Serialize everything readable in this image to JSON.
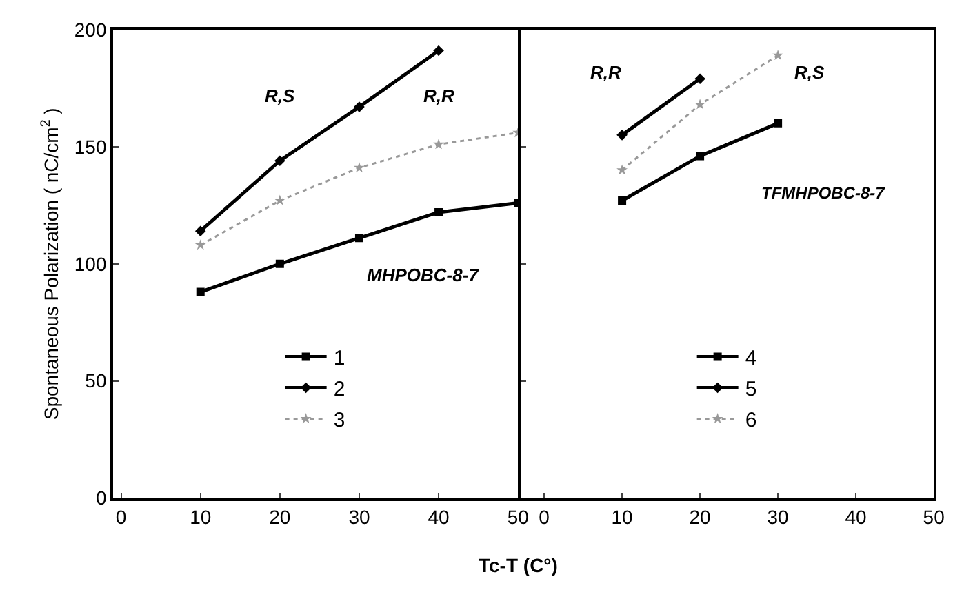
{
  "chart_data": [
    {
      "type": "line",
      "xlabel": "Tc-T (C°)",
      "ylabel": "Spontaneous Polarization ( nC/cm$^{2}$ )",
      "xlim": [
        -1,
        50
      ],
      "xticks": [
        0,
        10,
        20,
        30,
        40,
        50
      ],
      "ylim": [
        0,
        200
      ],
      "yticks": [
        0,
        50,
        100,
        150,
        200
      ],
      "legend": "bottom",
      "annotations": [
        "R,S",
        "R,R",
        "MHPOBC-8-7"
      ],
      "series": [
        {
          "name": "1",
          "color": "#000000",
          "line_style": "solid",
          "marker": "square",
          "x": [
            10,
            20,
            30,
            40,
            50
          ],
          "values": [
            88,
            100,
            111,
            122,
            126
          ]
        },
        {
          "name": "2",
          "color": "#000000",
          "line_style": "solid",
          "marker": "diamond",
          "x": [
            10,
            20,
            30,
            40
          ],
          "values": [
            114,
            144,
            167,
            191
          ]
        },
        {
          "name": "3",
          "color": "#999999",
          "line_style": "dotted",
          "marker": "star",
          "x": [
            10,
            20,
            30,
            40,
            50
          ],
          "values": [
            108,
            127,
            141,
            151,
            156
          ]
        }
      ]
    },
    {
      "type": "line",
      "xlim": [
        -3,
        50
      ],
      "xticks": [
        0,
        10,
        20,
        30,
        40,
        50
      ],
      "ylim": [
        0,
        200
      ],
      "yticks": [
        {
          "value": 0,
          "label": null
        },
        {
          "value": 50,
          "label": null
        },
        {
          "value": 100,
          "label": null
        },
        {
          "value": 150,
          "label": null
        },
        {
          "value": 200,
          "label": null
        }
      ],
      "tick_labels": "x",
      "legend": "bottom",
      "annotations": [
        "R,R",
        "R,S",
        "TFMHPOBC-8-7"
      ],
      "series": [
        {
          "name": "4",
          "color": "#000000",
          "line_style": "solid",
          "marker": "square",
          "x": [
            10,
            20,
            30
          ],
          "values": [
            127,
            146,
            160
          ]
        },
        {
          "name": "5",
          "color": "#000000",
          "line_style": "solid",
          "marker": "diamond",
          "x": [
            10,
            20
          ],
          "values": [
            155,
            179
          ]
        },
        {
          "name": "6",
          "color": "#999999",
          "line_style": "dotted",
          "marker": "star",
          "x": [
            10,
            20,
            30
          ],
          "values": [
            140,
            168,
            189
          ]
        }
      ]
    }
  ]
}
